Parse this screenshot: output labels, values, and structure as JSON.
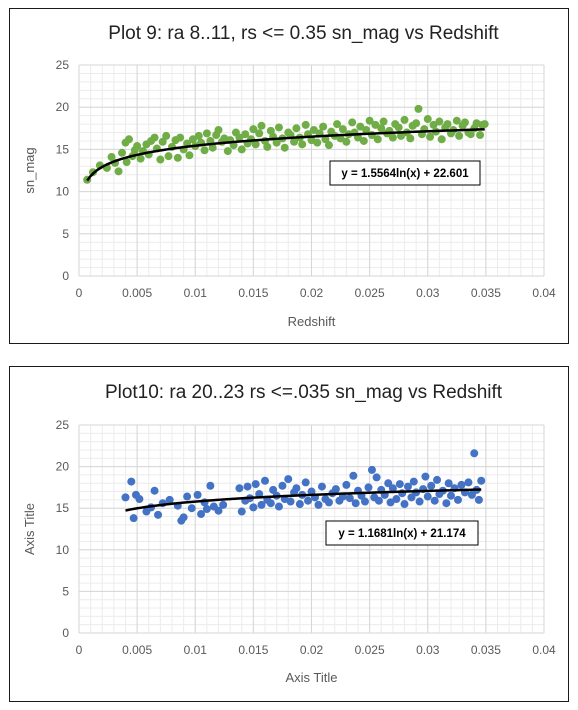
{
  "chart_data": [
    {
      "type": "scatter",
      "title": "Plot 9: ra 8..11, rs <= 0.35 sn_mag vs Redshift",
      "xlabel": "Redshift",
      "ylabel": "sn_mag",
      "xlim": [
        0,
        0.04
      ],
      "ylim": [
        0,
        25
      ],
      "x_ticks": [
        "0",
        "0.005",
        "0.01",
        "0.015",
        "0.02",
        "0.025",
        "0.03",
        "0.035",
        "0.04"
      ],
      "y_ticks": [
        "0",
        "5",
        "10",
        "15",
        "20",
        "25"
      ],
      "grid": true,
      "marker_color": "#70ad47",
      "trendline": {
        "type": "logarithmic",
        "a": 1.5564,
        "b": 22.601,
        "color": "#000000",
        "equation": "y = 1.5564ln(x) + 22.601"
      },
      "series": [
        {
          "points": [
            [
              0.0007,
              11.4
            ],
            [
              0.0012,
              12.3
            ],
            [
              0.0018,
              13.1
            ],
            [
              0.0024,
              12.8
            ],
            [
              0.0028,
              14.1
            ],
            [
              0.0031,
              13.4
            ],
            [
              0.0034,
              12.4
            ],
            [
              0.0037,
              14.6
            ],
            [
              0.004,
              15.8
            ],
            [
              0.0041,
              13.5
            ],
            [
              0.0043,
              16.2
            ],
            [
              0.0046,
              14.2
            ],
            [
              0.0048,
              14.9
            ],
            [
              0.005,
              15.4
            ],
            [
              0.0053,
              13.9
            ],
            [
              0.0055,
              14.8
            ],
            [
              0.0058,
              15.6
            ],
            [
              0.006,
              14.4
            ],
            [
              0.0062,
              16.0
            ],
            [
              0.0065,
              16.4
            ],
            [
              0.0067,
              15.1
            ],
            [
              0.007,
              13.8
            ],
            [
              0.0072,
              15.9
            ],
            [
              0.0075,
              16.6
            ],
            [
              0.0077,
              14.2
            ],
            [
              0.008,
              15.3
            ],
            [
              0.0083,
              16.1
            ],
            [
              0.0085,
              14.0
            ],
            [
              0.0087,
              16.4
            ],
            [
              0.009,
              15.0
            ],
            [
              0.0093,
              15.7
            ],
            [
              0.0095,
              14.3
            ],
            [
              0.0098,
              16.2
            ],
            [
              0.01,
              15.4
            ],
            [
              0.0103,
              16.6
            ],
            [
              0.0105,
              15.8
            ],
            [
              0.0108,
              14.9
            ],
            [
              0.011,
              16.9
            ],
            [
              0.0113,
              16.0
            ],
            [
              0.0115,
              15.2
            ],
            [
              0.0118,
              16.7
            ],
            [
              0.012,
              17.3
            ],
            [
              0.0123,
              15.9
            ],
            [
              0.0125,
              16.3
            ],
            [
              0.0128,
              14.8
            ],
            [
              0.013,
              16.1
            ],
            [
              0.0133,
              15.5
            ],
            [
              0.0135,
              17.0
            ],
            [
              0.0138,
              16.4
            ],
            [
              0.014,
              15.0
            ],
            [
              0.0143,
              16.8
            ],
            [
              0.0145,
              15.7
            ],
            [
              0.0148,
              16.2
            ],
            [
              0.015,
              17.4
            ],
            [
              0.0152,
              15.6
            ],
            [
              0.0155,
              16.9
            ],
            [
              0.0157,
              17.8
            ],
            [
              0.016,
              16.0
            ],
            [
              0.0162,
              15.3
            ],
            [
              0.0165,
              17.2
            ],
            [
              0.0167,
              16.5
            ],
            [
              0.017,
              15.8
            ],
            [
              0.0172,
              17.6
            ],
            [
              0.0175,
              16.3
            ],
            [
              0.0177,
              15.2
            ],
            [
              0.018,
              17.0
            ],
            [
              0.0182,
              16.7
            ],
            [
              0.0185,
              15.9
            ],
            [
              0.0187,
              17.5
            ],
            [
              0.019,
              16.4
            ],
            [
              0.0192,
              15.6
            ],
            [
              0.0195,
              17.9
            ],
            [
              0.0197,
              16.8
            ],
            [
              0.02,
              16.1
            ],
            [
              0.0202,
              17.3
            ],
            [
              0.0205,
              15.8
            ],
            [
              0.0207,
              16.9
            ],
            [
              0.021,
              17.7
            ],
            [
              0.0212,
              16.2
            ],
            [
              0.0215,
              15.5
            ],
            [
              0.0217,
              17.1
            ],
            [
              0.022,
              16.6
            ],
            [
              0.0222,
              18.0
            ],
            [
              0.0225,
              16.3
            ],
            [
              0.0227,
              17.4
            ],
            [
              0.023,
              15.9
            ],
            [
              0.0232,
              16.8
            ],
            [
              0.0235,
              18.2
            ],
            [
              0.0237,
              17.0
            ],
            [
              0.024,
              16.4
            ],
            [
              0.0242,
              17.7
            ],
            [
              0.0245,
              16.0
            ],
            [
              0.0247,
              17.3
            ],
            [
              0.025,
              18.4
            ],
            [
              0.0252,
              16.7
            ],
            [
              0.0255,
              17.9
            ],
            [
              0.0257,
              16.2
            ],
            [
              0.026,
              17.5
            ],
            [
              0.0262,
              18.3
            ],
            [
              0.0265,
              16.9
            ],
            [
              0.0267,
              17.2
            ],
            [
              0.027,
              16.4
            ],
            [
              0.0272,
              18.0
            ],
            [
              0.0275,
              17.6
            ],
            [
              0.0277,
              16.6
            ],
            [
              0.028,
              18.5
            ],
            [
              0.0282,
              17.0
            ],
            [
              0.0285,
              16.3
            ],
            [
              0.0287,
              17.8
            ],
            [
              0.029,
              18.1
            ],
            [
              0.0292,
              19.8
            ],
            [
              0.0295,
              16.8
            ],
            [
              0.0297,
              17.4
            ],
            [
              0.03,
              18.6
            ],
            [
              0.0302,
              16.5
            ],
            [
              0.0305,
              17.9
            ],
            [
              0.0307,
              17.1
            ],
            [
              0.031,
              18.3
            ],
            [
              0.0312,
              16.2
            ],
            [
              0.0315,
              17.6
            ],
            [
              0.0317,
              18.0
            ],
            [
              0.032,
              16.9
            ],
            [
              0.0322,
              17.3
            ],
            [
              0.0325,
              18.4
            ],
            [
              0.0327,
              16.6
            ],
            [
              0.033,
              17.8
            ],
            [
              0.0332,
              18.2
            ],
            [
              0.0335,
              17.0
            ],
            [
              0.0337,
              16.8
            ],
            [
              0.034,
              17.5
            ],
            [
              0.0342,
              18.1
            ],
            [
              0.0345,
              16.7
            ],
            [
              0.0347,
              17.9
            ],
            [
              0.0349,
              18.0
            ]
          ]
        }
      ]
    },
    {
      "type": "scatter",
      "title": "Plot10: ra 20..23 rs <=.035 sn_mag vs Redshift",
      "xlabel": "Axis Title",
      "ylabel": "Axis Title",
      "xlim": [
        0,
        0.04
      ],
      "ylim": [
        0,
        25
      ],
      "x_ticks": [
        "0",
        "0.005",
        "0.01",
        "0.015",
        "0.02",
        "0.025",
        "0.03",
        "0.035",
        "0.04"
      ],
      "y_ticks": [
        "0",
        "5",
        "10",
        "15",
        "20",
        "25"
      ],
      "grid": true,
      "marker_color": "#4472c4",
      "trendline": {
        "type": "logarithmic",
        "a": 1.1681,
        "b": 21.174,
        "color": "#000000",
        "equation": "y = 1.1681ln(x) + 21.174"
      },
      "series": [
        {
          "points": [
            [
              0.004,
              16.3
            ],
            [
              0.0045,
              18.2
            ],
            [
              0.0047,
              13.8
            ],
            [
              0.0049,
              16.6
            ],
            [
              0.0052,
              16.1
            ],
            [
              0.0058,
              14.6
            ],
            [
              0.0062,
              15.1
            ],
            [
              0.0065,
              17.1
            ],
            [
              0.0068,
              14.2
            ],
            [
              0.0072,
              15.6
            ],
            [
              0.0078,
              16.0
            ],
            [
              0.0085,
              15.3
            ],
            [
              0.0088,
              13.5
            ],
            [
              0.009,
              13.9
            ],
            [
              0.0093,
              16.4
            ],
            [
              0.0097,
              15.0
            ],
            [
              0.0102,
              16.6
            ],
            [
              0.0105,
              14.3
            ],
            [
              0.0108,
              15.7
            ],
            [
              0.011,
              14.9
            ],
            [
              0.0113,
              17.7
            ],
            [
              0.0116,
              15.2
            ],
            [
              0.012,
              14.7
            ],
            [
              0.0124,
              15.4
            ],
            [
              0.0138,
              17.4
            ],
            [
              0.014,
              14.6
            ],
            [
              0.0143,
              15.9
            ],
            [
              0.0145,
              17.6
            ],
            [
              0.0147,
              16.2
            ],
            [
              0.015,
              15.1
            ],
            [
              0.0152,
              17.9
            ],
            [
              0.0155,
              16.7
            ],
            [
              0.0157,
              15.4
            ],
            [
              0.016,
              18.3
            ],
            [
              0.0162,
              16.0
            ],
            [
              0.0165,
              15.6
            ],
            [
              0.0167,
              17.2
            ],
            [
              0.017,
              16.5
            ],
            [
              0.0172,
              15.2
            ],
            [
              0.0175,
              17.7
            ],
            [
              0.0177,
              16.1
            ],
            [
              0.018,
              18.5
            ],
            [
              0.0182,
              15.8
            ],
            [
              0.0185,
              16.9
            ],
            [
              0.0187,
              17.4
            ],
            [
              0.019,
              15.5
            ],
            [
              0.0192,
              16.6
            ],
            [
              0.0195,
              18.1
            ],
            [
              0.0197,
              15.9
            ],
            [
              0.02,
              17.0
            ],
            [
              0.0203,
              16.3
            ],
            [
              0.0206,
              15.4
            ],
            [
              0.0209,
              17.6
            ],
            [
              0.0212,
              16.1
            ],
            [
              0.0215,
              15.7
            ],
            [
              0.0218,
              16.8
            ],
            [
              0.0221,
              17.3
            ],
            [
              0.0224,
              15.9
            ],
            [
              0.0227,
              16.4
            ],
            [
              0.023,
              17.8
            ],
            [
              0.0233,
              16.2
            ],
            [
              0.0236,
              18.9
            ],
            [
              0.0238,
              15.6
            ],
            [
              0.024,
              17.1
            ],
            [
              0.0243,
              16.5
            ],
            [
              0.0246,
              15.8
            ],
            [
              0.0249,
              17.5
            ],
            [
              0.0252,
              19.6
            ],
            [
              0.0254,
              16.3
            ],
            [
              0.0256,
              18.7
            ],
            [
              0.0258,
              15.9
            ],
            [
              0.026,
              17.2
            ],
            [
              0.0263,
              16.6
            ],
            [
              0.0266,
              18.0
            ],
            [
              0.0268,
              15.7
            ],
            [
              0.027,
              17.4
            ],
            [
              0.0273,
              16.1
            ],
            [
              0.0276,
              17.9
            ],
            [
              0.0278,
              16.8
            ],
            [
              0.028,
              15.5
            ],
            [
              0.0283,
              17.6
            ],
            [
              0.0286,
              16.3
            ],
            [
              0.0288,
              18.2
            ],
            [
              0.029,
              16.9
            ],
            [
              0.0293,
              15.8
            ],
            [
              0.0296,
              17.3
            ],
            [
              0.0298,
              18.8
            ],
            [
              0.03,
              16.4
            ],
            [
              0.0303,
              17.7
            ],
            [
              0.0306,
              15.9
            ],
            [
              0.0308,
              18.4
            ],
            [
              0.031,
              16.7
            ],
            [
              0.0313,
              17.1
            ],
            [
              0.0316,
              15.6
            ],
            [
              0.0318,
              18.0
            ],
            [
              0.032,
              16.5
            ],
            [
              0.0323,
              17.4
            ],
            [
              0.0326,
              16.0
            ],
            [
              0.0329,
              17.8
            ],
            [
              0.0332,
              16.9
            ],
            [
              0.0335,
              18.1
            ],
            [
              0.0338,
              16.6
            ],
            [
              0.034,
              21.6
            ],
            [
              0.0342,
              17.2
            ],
            [
              0.0344,
              16.0
            ],
            [
              0.0346,
              18.3
            ]
          ]
        }
      ]
    }
  ]
}
